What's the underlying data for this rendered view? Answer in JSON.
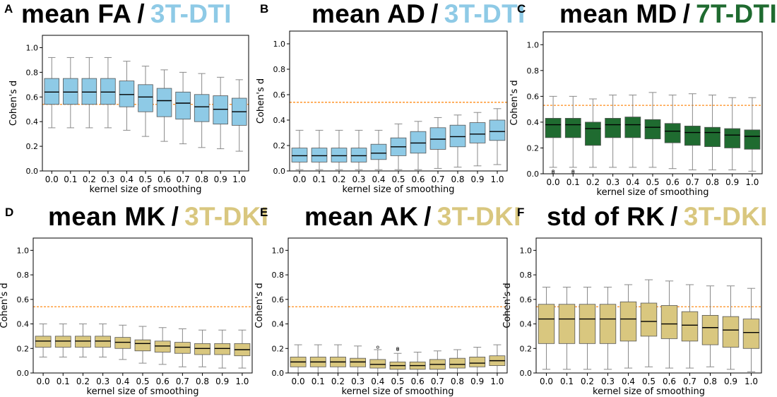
{
  "colors": {
    "dti3t": "#8ecae6",
    "dti7t": "#1f6b30",
    "dki3t": "#d9c77f",
    "reference_line": "#ff8c1a",
    "median_line": "#000000",
    "whisker": "#8a8a8a"
  },
  "chart_data": [
    {
      "type": "boxplot",
      "panel_letter": "A",
      "title_metric": "mean FA",
      "title_separator": "/",
      "title_dataset": "3T-DTI",
      "title_color": "#8ecae6",
      "box_color": "#8ecae6",
      "xlabel": "kernel size of smoothing",
      "ylabel": "Cohen's d",
      "ylim": [
        0,
        1.1
      ],
      "yticks": [
        "0.0",
        "0.2",
        "0.4",
        "0.6",
        "0.8",
        "1.0"
      ],
      "categories": [
        "0.0",
        "0.1",
        "0.2",
        "0.3",
        "0.4",
        "0.5",
        "0.6",
        "0.7",
        "0.8",
        "0.9",
        "1.0"
      ],
      "reference_line": 0.54,
      "boxes": [
        {
          "min": 0.35,
          "q1": 0.54,
          "median": 0.64,
          "q3": 0.75,
          "max": 0.92
        },
        {
          "min": 0.35,
          "q1": 0.54,
          "median": 0.64,
          "q3": 0.75,
          "max": 0.92
        },
        {
          "min": 0.35,
          "q1": 0.54,
          "median": 0.64,
          "q3": 0.75,
          "max": 0.92
        },
        {
          "min": 0.35,
          "q1": 0.54,
          "median": 0.64,
          "q3": 0.75,
          "max": 0.92
        },
        {
          "min": 0.33,
          "q1": 0.52,
          "median": 0.62,
          "q3": 0.73,
          "max": 0.89
        },
        {
          "min": 0.28,
          "q1": 0.48,
          "median": 0.6,
          "q3": 0.7,
          "max": 0.85
        },
        {
          "min": 0.24,
          "q1": 0.44,
          "median": 0.57,
          "q3": 0.67,
          "max": 0.82
        },
        {
          "min": 0.22,
          "q1": 0.42,
          "median": 0.55,
          "q3": 0.64,
          "max": 0.8
        },
        {
          "min": 0.19,
          "q1": 0.4,
          "median": 0.52,
          "q3": 0.62,
          "max": 0.79
        },
        {
          "min": 0.18,
          "q1": 0.38,
          "median": 0.5,
          "q3": 0.61,
          "max": 0.76
        },
        {
          "min": 0.16,
          "q1": 0.37,
          "median": 0.48,
          "q3": 0.59,
          "max": 0.74
        }
      ]
    },
    {
      "type": "boxplot",
      "panel_letter": "B",
      "title_metric": "mean AD",
      "title_separator": "/",
      "title_dataset": "3T-DTI",
      "title_color": "#8ecae6",
      "box_color": "#8ecae6",
      "xlabel": "kernel size of smoothing",
      "ylabel": "Cohen's d",
      "ylim": [
        0,
        1.1
      ],
      "yticks": [
        "0.0",
        "0.2",
        "0.4",
        "0.6",
        "0.8",
        "1.0"
      ],
      "categories": [
        "0.0",
        "0.1",
        "0.2",
        "0.3",
        "0.4",
        "0.5",
        "0.6",
        "0.7",
        "0.8",
        "0.9",
        "1.0"
      ],
      "reference_line": 0.54,
      "boxes": [
        {
          "min": 0.01,
          "q1": 0.07,
          "median": 0.12,
          "q3": 0.18,
          "max": 0.32
        },
        {
          "min": 0.01,
          "q1": 0.07,
          "median": 0.12,
          "q3": 0.18,
          "max": 0.32
        },
        {
          "min": 0.01,
          "q1": 0.07,
          "median": 0.12,
          "q3": 0.18,
          "max": 0.32
        },
        {
          "min": 0.01,
          "q1": 0.07,
          "median": 0.12,
          "q3": 0.18,
          "max": 0.32
        },
        {
          "min": 0.01,
          "q1": 0.09,
          "median": 0.14,
          "q3": 0.21,
          "max": 0.32
        },
        {
          "min": 0.01,
          "q1": 0.12,
          "median": 0.19,
          "q3": 0.26,
          "max": 0.37
        },
        {
          "min": 0.01,
          "q1": 0.14,
          "median": 0.22,
          "q3": 0.31,
          "max": 0.39
        },
        {
          "min": 0.02,
          "q1": 0.17,
          "median": 0.25,
          "q3": 0.34,
          "max": 0.42
        },
        {
          "min": 0.03,
          "q1": 0.19,
          "median": 0.27,
          "q3": 0.36,
          "max": 0.44
        },
        {
          "min": 0.04,
          "q1": 0.22,
          "median": 0.29,
          "q3": 0.38,
          "max": 0.46
        },
        {
          "min": 0.05,
          "q1": 0.24,
          "median": 0.31,
          "q3": 0.4,
          "max": 0.49
        }
      ]
    },
    {
      "type": "boxplot",
      "panel_letter": "C",
      "title_metric": "mean MD",
      "title_separator": "/",
      "title_dataset": "7T-DTI",
      "title_color": "#1f6b30",
      "box_color": "#1f6b30",
      "xlabel": "kernel size of smoothing",
      "ylabel": "Cohen's d",
      "ylim": [
        0,
        1.1
      ],
      "yticks": [
        "0.0",
        "0.2",
        "0.4",
        "0.6",
        "0.8",
        "1.0"
      ],
      "categories": [
        "0.0",
        "0.1",
        "0.2",
        "0.3",
        "0.4",
        "0.5",
        "0.6",
        "0.7",
        "0.8",
        "0.9",
        "1.0"
      ],
      "reference_line": 0.53,
      "boxes": [
        {
          "min": 0.05,
          "q1": 0.28,
          "median": 0.38,
          "q3": 0.43,
          "max": 0.6,
          "outliers": [
            0.02,
            0.01
          ]
        },
        {
          "min": 0.05,
          "q1": 0.28,
          "median": 0.38,
          "q3": 0.43,
          "max": 0.6,
          "outliers": [
            0.02,
            0.01
          ]
        },
        {
          "min": 0.05,
          "q1": 0.22,
          "median": 0.35,
          "q3": 0.4,
          "max": 0.58
        },
        {
          "min": 0.05,
          "q1": 0.28,
          "median": 0.38,
          "q3": 0.43,
          "max": 0.61
        },
        {
          "min": 0.05,
          "q1": 0.28,
          "median": 0.38,
          "q3": 0.44,
          "max": 0.61
        },
        {
          "min": 0.05,
          "q1": 0.27,
          "median": 0.36,
          "q3": 0.42,
          "max": 0.63
        },
        {
          "min": 0.04,
          "q1": 0.24,
          "median": 0.33,
          "q3": 0.39,
          "max": 0.61
        },
        {
          "min": 0.03,
          "q1": 0.22,
          "median": 0.32,
          "q3": 0.37,
          "max": 0.62
        },
        {
          "min": 0.03,
          "q1": 0.21,
          "median": 0.32,
          "q3": 0.36,
          "max": 0.61
        },
        {
          "min": 0.03,
          "q1": 0.2,
          "median": 0.3,
          "q3": 0.35,
          "max": 0.59
        },
        {
          "min": 0.02,
          "q1": 0.19,
          "median": 0.29,
          "q3": 0.34,
          "max": 0.59
        }
      ]
    },
    {
      "type": "boxplot",
      "panel_letter": "D",
      "title_metric": "mean MK",
      "title_separator": "/",
      "title_dataset": "3T-DKI",
      "title_color": "#d9c77f",
      "box_color": "#d9c77f",
      "xlabel": "kernel size of smoothing",
      "ylabel": "Cohen's d",
      "ylim": [
        0,
        1.1
      ],
      "yticks": [
        "0.0",
        "0.2",
        "0.4",
        "0.6",
        "0.8",
        "1.0"
      ],
      "categories": [
        "0.0",
        "0.1",
        "0.2",
        "0.3",
        "0.4",
        "0.5",
        "0.6",
        "0.7",
        "0.8",
        "0.9",
        "1.0"
      ],
      "reference_line": 0.54,
      "boxes": [
        {
          "min": 0.13,
          "q1": 0.21,
          "median": 0.26,
          "q3": 0.3,
          "max": 0.4
        },
        {
          "min": 0.13,
          "q1": 0.21,
          "median": 0.26,
          "q3": 0.3,
          "max": 0.4
        },
        {
          "min": 0.13,
          "q1": 0.21,
          "median": 0.26,
          "q3": 0.3,
          "max": 0.4
        },
        {
          "min": 0.13,
          "q1": 0.21,
          "median": 0.26,
          "q3": 0.3,
          "max": 0.4
        },
        {
          "min": 0.11,
          "q1": 0.2,
          "median": 0.25,
          "q3": 0.29,
          "max": 0.39
        },
        {
          "min": 0.08,
          "q1": 0.18,
          "median": 0.24,
          "q3": 0.27,
          "max": 0.38
        },
        {
          "min": 0.07,
          "q1": 0.17,
          "median": 0.22,
          "q3": 0.26,
          "max": 0.37
        },
        {
          "min": 0.05,
          "q1": 0.16,
          "median": 0.21,
          "q3": 0.25,
          "max": 0.36
        },
        {
          "min": 0.05,
          "q1": 0.15,
          "median": 0.2,
          "q3": 0.24,
          "max": 0.35
        },
        {
          "min": 0.04,
          "q1": 0.15,
          "median": 0.2,
          "q3": 0.24,
          "max": 0.35
        },
        {
          "min": 0.04,
          "q1": 0.14,
          "median": 0.19,
          "q3": 0.24,
          "max": 0.35
        }
      ]
    },
    {
      "type": "boxplot",
      "panel_letter": "E",
      "title_metric": "mean AK",
      "title_separator": "/",
      "title_dataset": "3T-DKI",
      "title_color": "#d9c77f",
      "box_color": "#d9c77f",
      "xlabel": "kernel size of smoothing",
      "ylabel": "Cohen's d",
      "ylim": [
        0,
        1.1
      ],
      "yticks": [
        "0.0",
        "0.2",
        "0.4",
        "0.6",
        "0.8",
        "1.0"
      ],
      "categories": [
        "0.0",
        "0.1",
        "0.2",
        "0.3",
        "0.4",
        "0.5",
        "0.6",
        "0.7",
        "0.8",
        "0.9",
        "1.0"
      ],
      "reference_line": 0.54,
      "boxes": [
        {
          "min": 0.0,
          "q1": 0.05,
          "median": 0.09,
          "q3": 0.13,
          "max": 0.23
        },
        {
          "min": 0.0,
          "q1": 0.05,
          "median": 0.09,
          "q3": 0.13,
          "max": 0.23
        },
        {
          "min": 0.0,
          "q1": 0.05,
          "median": 0.09,
          "q3": 0.13,
          "max": 0.23
        },
        {
          "min": 0.0,
          "q1": 0.05,
          "median": 0.09,
          "q3": 0.12,
          "max": 0.22
        },
        {
          "min": 0.0,
          "q1": 0.04,
          "median": 0.07,
          "q3": 0.11,
          "max": 0.19,
          "outliers": [
            0.21
          ]
        },
        {
          "min": 0.0,
          "q1": 0.03,
          "median": 0.06,
          "q3": 0.09,
          "max": 0.16,
          "outliers": [
            0.19,
            0.2
          ]
        },
        {
          "min": 0.0,
          "q1": 0.03,
          "median": 0.06,
          "q3": 0.09,
          "max": 0.17
        },
        {
          "min": 0.0,
          "q1": 0.03,
          "median": 0.07,
          "q3": 0.11,
          "max": 0.18
        },
        {
          "min": 0.0,
          "q1": 0.04,
          "median": 0.07,
          "q3": 0.12,
          "max": 0.19
        },
        {
          "min": 0.0,
          "q1": 0.05,
          "median": 0.08,
          "q3": 0.13,
          "max": 0.21
        },
        {
          "min": 0.0,
          "q1": 0.06,
          "median": 0.1,
          "q3": 0.14,
          "max": 0.23
        }
      ]
    },
    {
      "type": "boxplot",
      "panel_letter": "F",
      "title_metric": "std of RK",
      "title_separator": "/",
      "title_dataset": "3T-DKI",
      "title_color": "#d9c77f",
      "box_color": "#d9c77f",
      "xlabel": "kernel size of smoothing",
      "ylabel": "Cohen's d",
      "ylim": [
        0,
        1.1
      ],
      "yticks": [
        "0.0",
        "0.2",
        "0.4",
        "0.6",
        "0.8",
        "1.0"
      ],
      "categories": [
        "0.0",
        "0.1",
        "0.2",
        "0.3",
        "0.4",
        "0.5",
        "0.6",
        "0.7",
        "0.8",
        "0.9",
        "1.0"
      ],
      "reference_line": 0.54,
      "boxes": [
        {
          "min": 0.03,
          "q1": 0.24,
          "median": 0.44,
          "q3": 0.56,
          "max": 0.7
        },
        {
          "min": 0.03,
          "q1": 0.24,
          "median": 0.44,
          "q3": 0.56,
          "max": 0.7
        },
        {
          "min": 0.03,
          "q1": 0.24,
          "median": 0.44,
          "q3": 0.56,
          "max": 0.7
        },
        {
          "min": 0.03,
          "q1": 0.24,
          "median": 0.44,
          "q3": 0.56,
          "max": 0.7
        },
        {
          "min": 0.04,
          "q1": 0.26,
          "median": 0.44,
          "q3": 0.58,
          "max": 0.72
        },
        {
          "min": 0.05,
          "q1": 0.3,
          "median": 0.42,
          "q3": 0.57,
          "max": 0.76
        },
        {
          "min": 0.04,
          "q1": 0.28,
          "median": 0.4,
          "q3": 0.55,
          "max": 0.75
        },
        {
          "min": 0.04,
          "q1": 0.26,
          "median": 0.39,
          "q3": 0.5,
          "max": 0.72
        },
        {
          "min": 0.05,
          "q1": 0.23,
          "median": 0.37,
          "q3": 0.47,
          "max": 0.71
        },
        {
          "min": 0.03,
          "q1": 0.21,
          "median": 0.35,
          "q3": 0.46,
          "max": 0.71
        },
        {
          "min": 0.01,
          "q1": 0.2,
          "median": 0.33,
          "q3": 0.44,
          "max": 0.69
        }
      ]
    }
  ]
}
